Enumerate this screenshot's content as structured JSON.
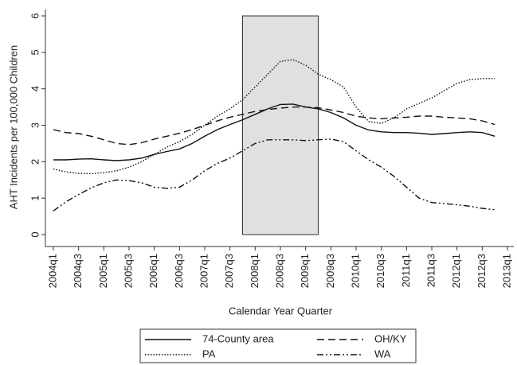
{
  "chart_data": {
    "type": "line",
    "x_label": "Calendar Year Quarter",
    "y_label": "AHT Incidents per 100,000 Children",
    "categories": [
      "2004q1",
      null,
      "2004q3",
      null,
      "2005q1",
      null,
      "2005q3",
      null,
      "2006q1",
      null,
      "2006q3",
      null,
      "2007q1",
      null,
      "2007q3",
      null,
      "2008q1",
      null,
      "2008q3",
      null,
      "2009q1",
      null,
      "2009q3",
      null,
      "2010q1",
      null,
      "2010q3",
      null,
      "2011q1",
      null,
      "2011q3",
      null,
      "2012q1",
      null,
      "2012q3",
      null,
      "2013q1"
    ],
    "ylim": [
      0,
      6
    ],
    "yticks": [
      0,
      1,
      2,
      3,
      4,
      5,
      6
    ],
    "shaded_region": {
      "from": "2007q4",
      "to": "2009q2",
      "color": "#e0e0e0"
    },
    "series": [
      {
        "name": "74-County area",
        "color": "#111111",
        "dash": "none",
        "values": [
          2.05,
          2.05,
          2.07,
          2.08,
          2.05,
          2.03,
          2.05,
          2.1,
          2.2,
          2.28,
          2.35,
          2.5,
          2.7,
          2.88,
          3.02,
          3.15,
          3.3,
          3.45,
          3.57,
          3.58,
          3.5,
          3.45,
          3.35,
          3.2,
          3.0,
          2.87,
          2.82,
          2.8,
          2.8,
          2.78,
          2.75,
          2.77,
          2.8,
          2.82,
          2.8,
          2.7,
          null
        ]
      },
      {
        "name": "OH/KY",
        "color": "#111111",
        "dash": "9 5",
        "values": [
          2.88,
          2.8,
          2.77,
          2.7,
          2.6,
          2.5,
          2.47,
          2.52,
          2.62,
          2.7,
          2.78,
          2.88,
          3.0,
          3.12,
          3.22,
          3.3,
          3.38,
          3.43,
          3.47,
          3.5,
          3.5,
          3.48,
          3.42,
          3.35,
          3.25,
          3.2,
          3.18,
          3.2,
          3.22,
          3.25,
          3.25,
          3.22,
          3.2,
          3.18,
          3.12,
          3.02,
          null
        ]
      },
      {
        "name": "PA",
        "color": "#111111",
        "dash": "1.5 2",
        "values": [
          1.8,
          1.72,
          1.68,
          1.67,
          1.7,
          1.75,
          1.85,
          2.0,
          2.2,
          2.4,
          2.55,
          2.75,
          3.0,
          3.25,
          3.45,
          3.7,
          4.05,
          4.4,
          4.75,
          4.8,
          4.65,
          4.4,
          4.25,
          4.05,
          3.5,
          3.1,
          3.05,
          3.2,
          3.45,
          3.6,
          3.75,
          3.95,
          4.15,
          4.25,
          4.28,
          4.28,
          null
        ]
      },
      {
        "name": "WA",
        "color": "#111111",
        "dash": "8 3 2 3 2 3",
        "values": [
          0.65,
          0.9,
          1.1,
          1.28,
          1.42,
          1.5,
          1.48,
          1.42,
          1.3,
          1.27,
          1.3,
          1.5,
          1.75,
          1.95,
          2.1,
          2.3,
          2.5,
          2.6,
          2.6,
          2.6,
          2.58,
          2.6,
          2.62,
          2.55,
          2.3,
          2.05,
          1.85,
          1.6,
          1.3,
          1.0,
          0.88,
          0.85,
          0.82,
          0.78,
          0.72,
          0.68,
          null
        ]
      }
    ]
  }
}
